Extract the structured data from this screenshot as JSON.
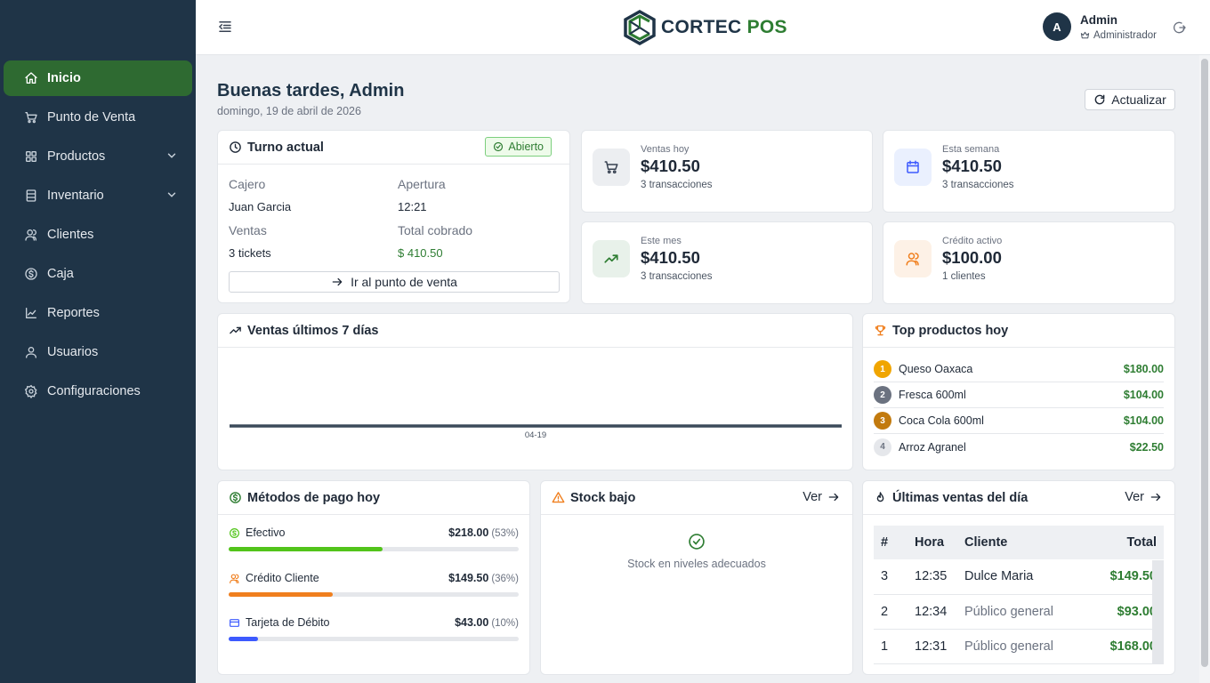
{
  "brand": {
    "name_part1": "CORTEC",
    "name_part2": "POS"
  },
  "user": {
    "initial": "A",
    "name": "Admin",
    "role": "Administrador"
  },
  "nav": {
    "items": [
      {
        "label": "Inicio"
      },
      {
        "label": "Punto de Venta"
      },
      {
        "label": "Productos"
      },
      {
        "label": "Inventario"
      },
      {
        "label": "Clientes"
      },
      {
        "label": "Caja"
      },
      {
        "label": "Reportes"
      },
      {
        "label": "Usuarios"
      },
      {
        "label": "Configuraciones"
      }
    ]
  },
  "header": {
    "greeting": "Buenas tardes, Admin",
    "date": "domingo, 19 de abril de 2026",
    "refresh_label": "Actualizar"
  },
  "shift": {
    "title": "Turno actual",
    "status": "Abierto",
    "cashier_label": "Cajero",
    "cashier": "Juan Garcia",
    "opening_label": "Apertura",
    "opening": "12:21",
    "sales_label": "Ventas",
    "sales": "3 tickets",
    "total_label": "Total cobrado",
    "total": "$ 410.50",
    "pos_button": "Ir al punto de venta"
  },
  "stats": [
    {
      "label": "Ventas hoy",
      "value": "$410.50",
      "sub": "3 transacciones",
      "icon": "cart-icon"
    },
    {
      "label": "Esta semana",
      "value": "$410.50",
      "sub": "3 transacciones",
      "icon": "calendar-icon"
    },
    {
      "label": "Este mes",
      "value": "$410.50",
      "sub": "3 transacciones",
      "icon": "trend-up-icon"
    },
    {
      "label": "Crédito activo",
      "value": "$100.00",
      "sub": "1 clientes",
      "icon": "users-icon"
    }
  ],
  "sales_chart": {
    "title": "Ventas últimos 7 días"
  },
  "chart_data": {
    "type": "line",
    "x": [
      "04-19"
    ],
    "series": [
      {
        "values": [
          410.5
        ]
      }
    ],
    "xlabel": "",
    "ylabel": "",
    "grid": false
  },
  "top_products": {
    "title": "Top productos hoy",
    "items": [
      {
        "rank": "1",
        "name": "Queso Oaxaca",
        "amount": "$180.00",
        "color": "#f0a500"
      },
      {
        "rank": "2",
        "name": "Fresca 600ml",
        "amount": "$104.00",
        "color": "#6b7280"
      },
      {
        "rank": "3",
        "name": "Coca Cola 600ml",
        "amount": "$104.00",
        "color": "#c27a0e"
      },
      {
        "rank": "4",
        "name": "Arroz Agranel",
        "amount": "$22.50",
        "color": "#e5e7eb"
      }
    ]
  },
  "payments": {
    "title": "Métodos de pago hoy",
    "items": [
      {
        "name": "Efectivo",
        "amount": "$218.00",
        "pct_label": "(53%)",
        "pct": 53,
        "color": "#52c41a"
      },
      {
        "name": "Crédito Cliente",
        "amount": "$149.50",
        "pct_label": "(36%)",
        "pct": 36,
        "color": "#f07f1e"
      },
      {
        "name": "Tarjeta de Débito",
        "amount": "$43.00",
        "pct_label": "(10%)",
        "pct": 10,
        "color": "#3d5afe"
      }
    ]
  },
  "low_stock": {
    "title": "Stock bajo",
    "link": "Ver",
    "empty_message": "Stock en niveles adecuados"
  },
  "recent_sales": {
    "title": "Últimas ventas del día",
    "link": "Ver",
    "columns": [
      "#",
      "Hora",
      "Cliente",
      "Total"
    ],
    "rows": [
      {
        "id": "3",
        "time": "12:35",
        "client": "Dulce Maria",
        "total": "$149.50"
      },
      {
        "id": "2",
        "time": "12:34",
        "client": "Público general",
        "total": "$93.00"
      },
      {
        "id": "1",
        "time": "12:31",
        "client": "Público general",
        "total": "$168.00"
      }
    ]
  }
}
